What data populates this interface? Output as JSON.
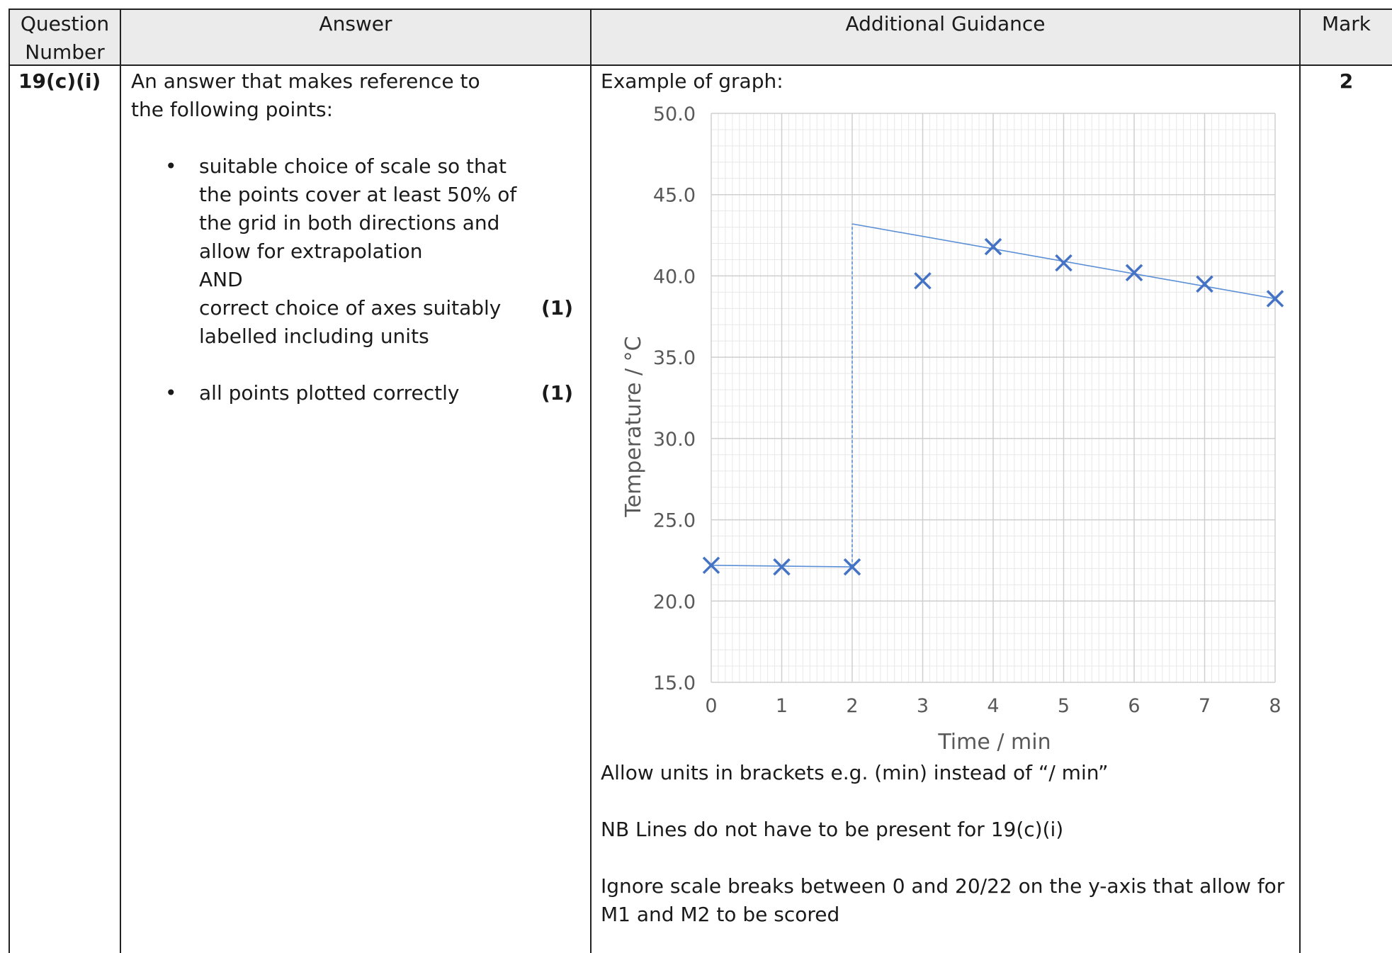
{
  "header": {
    "question_number": "Question Number",
    "answer": "Answer",
    "guidance": "Additional Guidance",
    "mark": "Mark"
  },
  "row": {
    "question_id": "19(c)(i)",
    "answer_intro_line1": "An answer that makes reference to",
    "answer_intro_line2": "the following points:",
    "bullet1_lines": [
      "suitable choice of scale so that",
      "the points cover at least 50% of",
      "the grid in both directions and",
      "allow for extrapolation",
      "AND",
      "correct choice of axes suitably",
      "labelled including units"
    ],
    "bullet1_mark": "(1)",
    "bullet2": "all points plotted correctly",
    "bullet2_mark": "(1)",
    "guidance_intro": "Example of graph:",
    "guidance_note1": "Allow units in brackets e.g. (min) instead of “/ min”",
    "guidance_note2": "NB Lines do not have to be present for 19(c)(i)",
    "guidance_note3_line1": "Ignore scale breaks between 0 and 20/22 on the y-axis that allow for",
    "guidance_note3_line2": "M1 and M2 to be scored",
    "mark_value": "2"
  },
  "chart_data": {
    "type": "scatter",
    "xlabel": "Time / min",
    "ylabel": "Temperature / °C",
    "xlim": [
      0,
      8
    ],
    "ylim": [
      15.0,
      50.0
    ],
    "x_ticks": [
      "0",
      "1",
      "2",
      "3",
      "4",
      "5",
      "6",
      "7",
      "8"
    ],
    "y_ticks": [
      "15.0",
      "20.0",
      "25.0",
      "30.0",
      "35.0",
      "40.0",
      "45.0",
      "50.0"
    ],
    "grid": true,
    "marker_color": "#4472c4",
    "line_color": "#5b8fd6",
    "points": [
      {
        "x": 0,
        "y": 22.2
      },
      {
        "x": 1,
        "y": 22.1
      },
      {
        "x": 2,
        "y": 22.1
      },
      {
        "x": 3,
        "y": 39.7
      },
      {
        "x": 4,
        "y": 41.8
      },
      {
        "x": 5,
        "y": 40.8
      },
      {
        "x": 6,
        "y": 40.2
      },
      {
        "x": 7,
        "y": 39.5
      },
      {
        "x": 8,
        "y": 38.6
      }
    ],
    "lines": [
      {
        "from": [
          0,
          22.2
        ],
        "to": [
          2,
          22.1
        ],
        "style": "solid"
      },
      {
        "from": [
          2,
          43.2
        ],
        "to": [
          8,
          38.6
        ],
        "style": "solid"
      },
      {
        "from": [
          2,
          22.1
        ],
        "to": [
          2,
          43.2
        ],
        "style": "dashed"
      }
    ]
  }
}
